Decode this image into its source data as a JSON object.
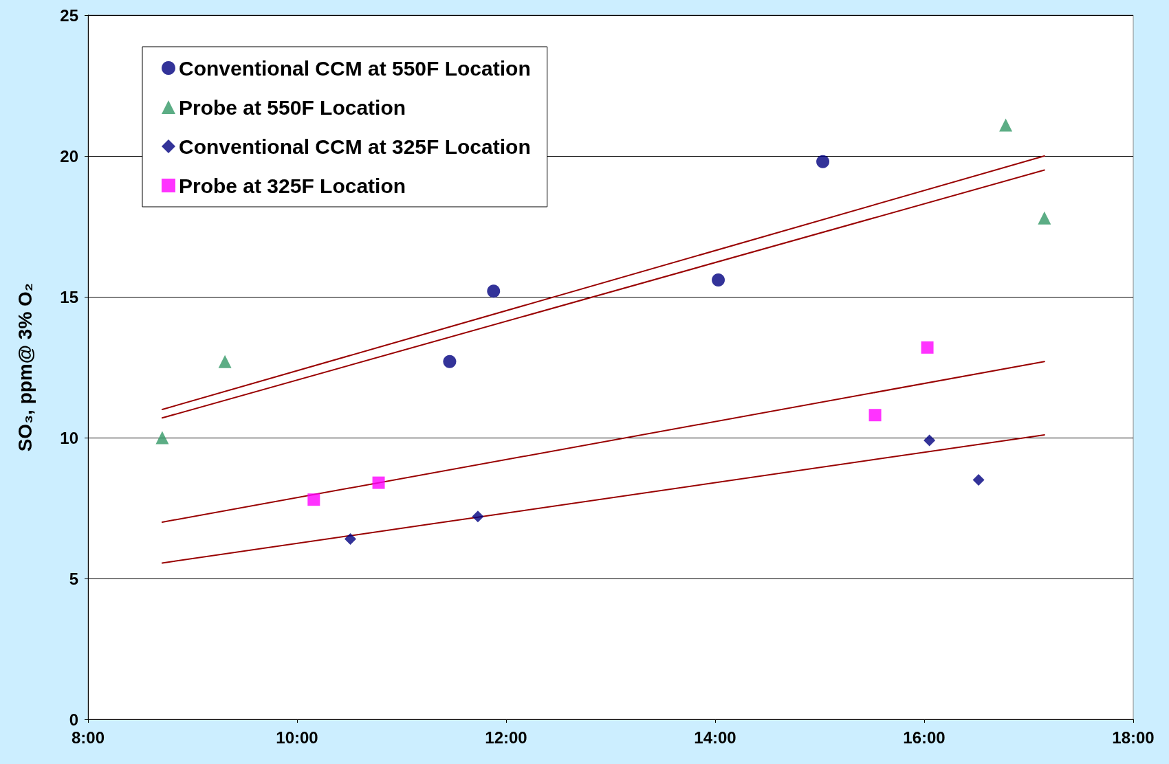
{
  "chart_data": {
    "type": "scatter",
    "ylabel": "SO₃, ppm@ 3% O₂",
    "xlim": [
      8,
      18
    ],
    "xticks": [
      {
        "value": 8,
        "label": "8:00"
      },
      {
        "value": 10,
        "label": "10:00"
      },
      {
        "value": 12,
        "label": "12:00"
      },
      {
        "value": 14,
        "label": "14:00"
      },
      {
        "value": 16,
        "label": "16:00"
      },
      {
        "value": 18,
        "label": "18:00"
      }
    ],
    "ylim": [
      0,
      25
    ],
    "yticks": [
      0,
      5,
      10,
      15,
      20,
      25
    ],
    "grid": "y",
    "legend": "top left",
    "series": [
      {
        "name": "Conventional CCM at 550F Location",
        "color": "#000080",
        "marker": "circle",
        "x": [
          11.46,
          11.88,
          14.03,
          15.03
        ],
        "values": [
          12.7,
          15.2,
          15.6,
          19.8
        ]
      },
      {
        "name": "Probe at 550F Location",
        "color": "#339966",
        "marker": "triangle",
        "x": [
          8.71,
          9.31,
          16.78,
          17.15
        ],
        "values": [
          10.0,
          12.7,
          21.1,
          17.8
        ]
      },
      {
        "name": "Conventional CCM at 325F Location",
        "color": "#000080",
        "marker": "diamond",
        "x": [
          10.51,
          11.73,
          16.05,
          16.52
        ],
        "values": [
          6.4,
          7.2,
          9.9,
          8.5
        ]
      },
      {
        "name": "Probe at 325F Location",
        "color": "#ff00ff",
        "marker": "square",
        "x": [
          10.16,
          10.78,
          15.53,
          16.03
        ],
        "values": [
          7.8,
          8.4,
          10.8,
          13.2
        ]
      },
      {
        "type": "line",
        "color": "#990000",
        "marker": "none",
        "x": [
          8.71,
          17.15
        ],
        "values": [
          11.0,
          20.0
        ]
      },
      {
        "type": "line",
        "color": "#990000",
        "marker": "none",
        "x": [
          8.71,
          17.15
        ],
        "values": [
          10.7,
          19.5
        ]
      },
      {
        "type": "line",
        "color": "#990000",
        "marker": "none",
        "x": [
          8.71,
          17.15
        ],
        "values": [
          7.0,
          12.7
        ]
      },
      {
        "type": "line",
        "color": "#990000",
        "marker": "none",
        "x": [
          8.71,
          17.15
        ],
        "values": [
          5.55,
          10.1
        ]
      }
    ]
  }
}
